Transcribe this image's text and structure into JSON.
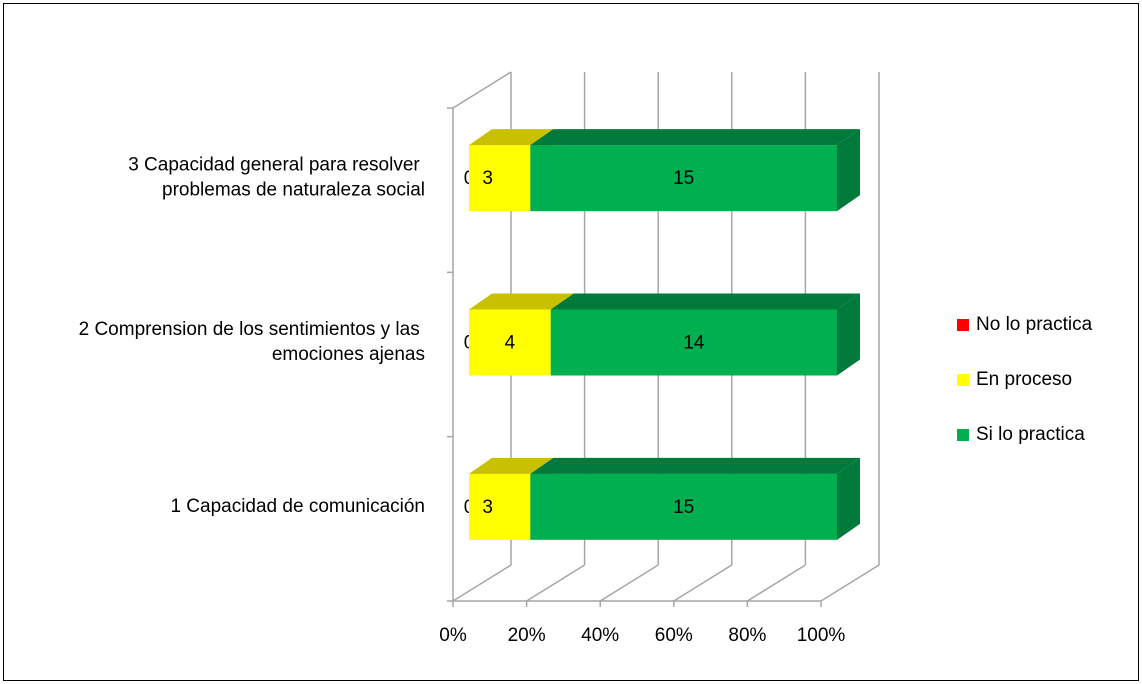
{
  "chart_data": {
    "type": "bar",
    "orientation": "horizontal",
    "stacked": "percent",
    "categories": [
      "1 Capacidad de comunicación",
      "2 Comprension de los sentimientos y las emociones ajenas",
      "3 Capacidad general para resolver problemas de naturaleza social"
    ],
    "series": [
      {
        "name": "No lo practica",
        "color": "#ff0000",
        "values": [
          0,
          0,
          0
        ]
      },
      {
        "name": "En proceso",
        "color": "#ffff00",
        "values": [
          3,
          4,
          3
        ]
      },
      {
        "name": "Si lo practica",
        "color": "#00b050",
        "values": [
          15,
          14,
          15
        ]
      }
    ],
    "xlim": [
      0,
      100
    ],
    "xticks": [
      {
        "value": 0,
        "label": "0%"
      },
      {
        "value": 20,
        "label": "20%"
      },
      {
        "value": 40,
        "label": "40%"
      },
      {
        "value": 60,
        "label": "60%"
      },
      {
        "value": 80,
        "label": "80%"
      },
      {
        "value": 100,
        "label": "100%"
      }
    ],
    "grid": true,
    "legend": "right"
  }
}
